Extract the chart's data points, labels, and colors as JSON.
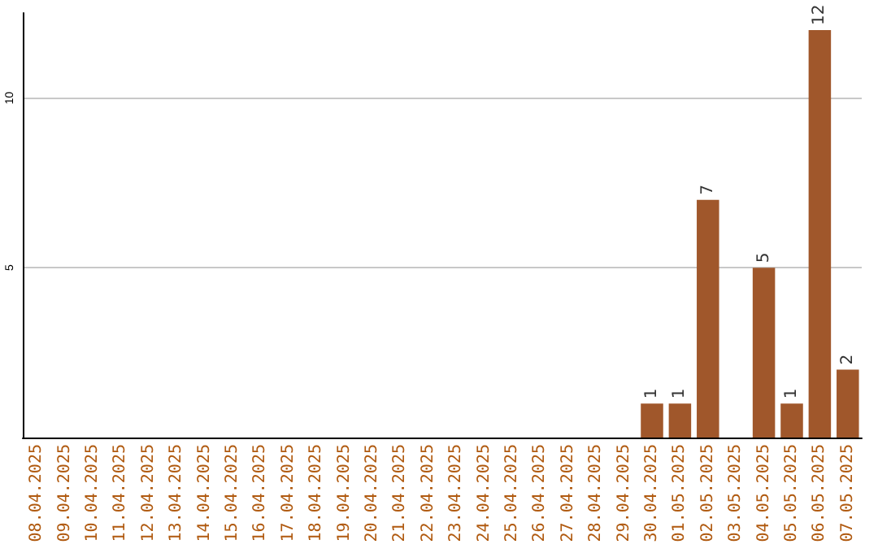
{
  "chart_data": {
    "type": "bar",
    "categories": [
      "08.04.2025",
      "09.04.2025",
      "10.04.2025",
      "11.04.2025",
      "12.04.2025",
      "13.04.2025",
      "14.04.2025",
      "15.04.2025",
      "16.04.2025",
      "17.04.2025",
      "18.04.2025",
      "19.04.2025",
      "20.04.2025",
      "21.04.2025",
      "22.04.2025",
      "23.04.2025",
      "24.04.2025",
      "25.04.2025",
      "26.04.2025",
      "27.04.2025",
      "28.04.2025",
      "29.04.2025",
      "30.04.2025",
      "01.05.2025",
      "02.05.2025",
      "03.05.2025",
      "04.05.2025",
      "05.05.2025",
      "06.05.2025",
      "07.05.2025"
    ],
    "values": [
      0,
      0,
      0,
      0,
      0,
      0,
      0,
      0,
      0,
      0,
      0,
      0,
      0,
      0,
      0,
      0,
      0,
      0,
      0,
      0,
      0,
      0,
      1,
      1,
      7,
      0,
      5,
      1,
      12,
      2
    ],
    "value_labels": [
      null,
      null,
      null,
      null,
      null,
      null,
      null,
      null,
      null,
      null,
      null,
      null,
      null,
      null,
      null,
      null,
      null,
      null,
      null,
      null,
      null,
      null,
      "1",
      "1",
      "7",
      null,
      "5",
      "1",
      "12",
      "2"
    ],
    "color": "#a0572b",
    "ylim": [
      0,
      12.5
    ],
    "yticks": [
      {
        "value": 0,
        "label": null
      },
      5,
      10
    ],
    "grid": "y"
  }
}
